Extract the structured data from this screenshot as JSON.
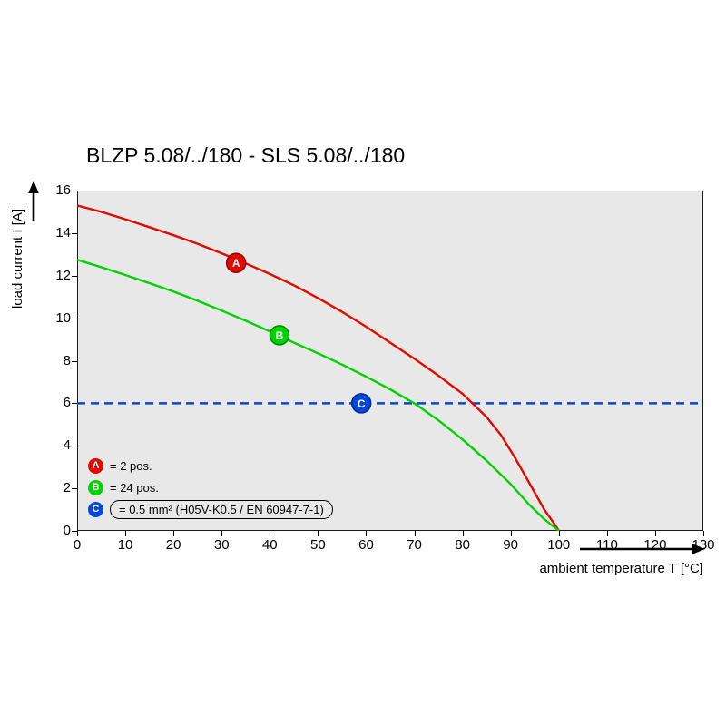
{
  "title": "BLZP 5.08/../180 - SLS 5.08/../180",
  "axes": {
    "y_label": "load current I [A]",
    "x_label": "ambient temperature T [°C]"
  },
  "legend": [
    {
      "letter": "A",
      "label": "= 2 pos.",
      "color": "#e30a00"
    },
    {
      "letter": "B",
      "label": "= 24 pos.",
      "color": "#00d300"
    },
    {
      "letter": "C",
      "label": "= 0.5 mm² (H05V-K0.5 / EN 60947-7-1)",
      "color": "#0047dc"
    }
  ],
  "chart_data": {
    "type": "line",
    "title": "BLZP 5.08/../180 - SLS 5.08/../180",
    "xlabel": "ambient temperature T [°C]",
    "ylabel": "load current I [A]",
    "xlim": [
      0,
      130
    ],
    "ylim": [
      0,
      16
    ],
    "x_ticks": [
      0,
      10,
      20,
      30,
      40,
      50,
      60,
      70,
      80,
      90,
      100,
      110,
      120,
      130
    ],
    "y_ticks": [
      0,
      2,
      4,
      6,
      8,
      10,
      12,
      14,
      16
    ],
    "grid": false,
    "plot_bg": "#e8e8e8",
    "legend_position": "inside bottom-left",
    "series": [
      {
        "name": "2 pos.",
        "marker": "A",
        "color": "#e30a00",
        "marker_stroke": "#930000",
        "marker_at": [
          33,
          12.6
        ],
        "points": [
          [
            0,
            15.3
          ],
          [
            5,
            15.0
          ],
          [
            10,
            14.65
          ],
          [
            15,
            14.28
          ],
          [
            20,
            13.9
          ],
          [
            25,
            13.5
          ],
          [
            30,
            13.05
          ],
          [
            35,
            12.58
          ],
          [
            40,
            12.08
          ],
          [
            45,
            11.55
          ],
          [
            50,
            10.95
          ],
          [
            55,
            10.3
          ],
          [
            60,
            9.6
          ],
          [
            65,
            8.85
          ],
          [
            70,
            8.1
          ],
          [
            75,
            7.3
          ],
          [
            80,
            6.45
          ],
          [
            85,
            5.35
          ],
          [
            88,
            4.5
          ],
          [
            91,
            3.4
          ],
          [
            94,
            2.2
          ],
          [
            97,
            1.0
          ],
          [
            99,
            0.35
          ],
          [
            100,
            0
          ]
        ]
      },
      {
        "name": "24 pos.",
        "marker": "B",
        "color": "#00d300",
        "marker_stroke": "#008c00",
        "marker_at": [
          42,
          9.2
        ],
        "points": [
          [
            0,
            12.75
          ],
          [
            5,
            12.4
          ],
          [
            10,
            12.03
          ],
          [
            15,
            11.65
          ],
          [
            20,
            11.25
          ],
          [
            25,
            10.82
          ],
          [
            30,
            10.36
          ],
          [
            35,
            9.88
          ],
          [
            40,
            9.38
          ],
          [
            45,
            8.85
          ],
          [
            50,
            8.35
          ],
          [
            55,
            7.82
          ],
          [
            60,
            7.25
          ],
          [
            65,
            6.65
          ],
          [
            70,
            6.0
          ],
          [
            75,
            5.2
          ],
          [
            80,
            4.3
          ],
          [
            85,
            3.3
          ],
          [
            90,
            2.2
          ],
          [
            94,
            1.2
          ],
          [
            97,
            0.55
          ],
          [
            100,
            0
          ]
        ]
      }
    ],
    "reference_line": {
      "name": "0.5 mm² (H05V-K0.5 / EN 60947-7-1)",
      "marker": "C",
      "y": 6,
      "style": "dashed",
      "color": "#0047dc",
      "marker_stroke": "#00288f",
      "marker_at": [
        59,
        6
      ]
    }
  }
}
